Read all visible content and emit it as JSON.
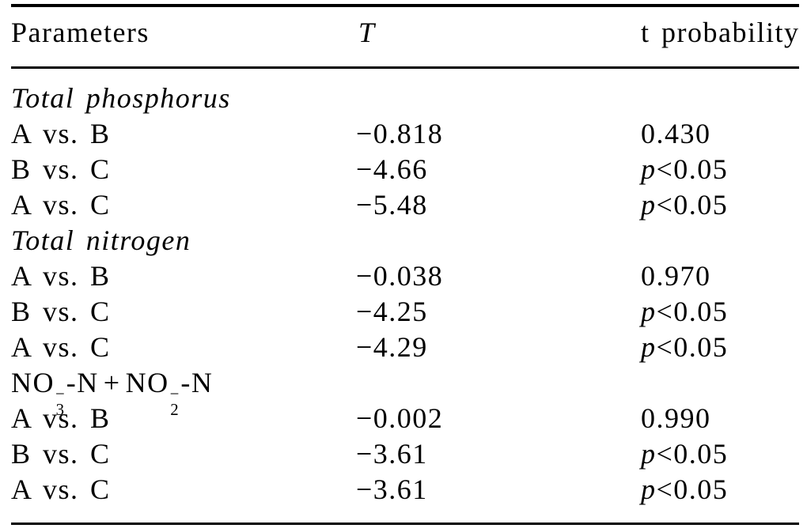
{
  "table": {
    "header": {
      "col1": "Parameters",
      "col2": "T",
      "col3": "t probability"
    },
    "rows": [
      {
        "type": "section",
        "label": "Total phosphorus"
      },
      {
        "type": "data",
        "param": "A vs. B",
        "t": "−0.818",
        "prob_prefix": "",
        "prob": "0.430"
      },
      {
        "type": "data",
        "param": "B vs. C",
        "t": "−4.66",
        "prob_prefix": "p",
        "prob": "<0.05"
      },
      {
        "type": "data",
        "param": "A vs. C",
        "t": "−5.48",
        "prob_prefix": "p",
        "prob": "<0.05"
      },
      {
        "type": "section",
        "label": "Total nitrogen"
      },
      {
        "type": "data",
        "param": "A vs. B",
        "t": "−0.038",
        "prob_prefix": "",
        "prob": "0.970"
      },
      {
        "type": "data",
        "param": "B vs. C",
        "t": "−4.25",
        "prob_prefix": "p",
        "prob": "<0.05"
      },
      {
        "type": "data",
        "param": "A vs. C",
        "t": "−4.29",
        "prob_prefix": "p",
        "prob": "<0.05"
      },
      {
        "type": "chem",
        "formula": {
          "g1": "NO",
          "sup1": "−",
          "sub1": "3",
          "g2": "-N",
          "plus": "+",
          "g3": "NO",
          "sup2": "−",
          "sub2": "2",
          "g4": "-N"
        }
      },
      {
        "type": "data",
        "param": "A vs. B",
        "t": "−0.002",
        "prob_prefix": "",
        "prob": "0.990"
      },
      {
        "type": "data",
        "param": "B vs. C",
        "t": "−3.61",
        "prob_prefix": "p",
        "prob": "<0.05"
      },
      {
        "type": "data",
        "param": "A vs. C",
        "t": "−3.61",
        "prob_prefix": "p",
        "prob": "<0.05"
      }
    ],
    "colors": {
      "text": "#000000",
      "rule": "#000000",
      "background": "#ffffff"
    }
  },
  "chart_data": {
    "type": "table",
    "columns": [
      "Parameters",
      "T",
      "t probability"
    ],
    "rows": [
      [
        "Total phosphorus",
        "",
        ""
      ],
      [
        "A vs. B",
        "−0.818",
        "0.430"
      ],
      [
        "B vs. C",
        "−4.66",
        "p<0.05"
      ],
      [
        "A vs. C",
        "−5.48",
        "p<0.05"
      ],
      [
        "Total nitrogen",
        "",
        ""
      ],
      [
        "A vs. B",
        "−0.038",
        "0.970"
      ],
      [
        "B vs. C",
        "−4.25",
        "p<0.05"
      ],
      [
        "A vs. C",
        "−4.29",
        "p<0.05"
      ],
      [
        "NO3−-N + NO2−-N",
        "",
        ""
      ],
      [
        "A vs. B",
        "−0.002",
        "0.990"
      ],
      [
        "B vs. C",
        "−3.61",
        "p<0.05"
      ],
      [
        "A vs. C",
        "−3.61",
        "p<0.05"
      ]
    ]
  }
}
